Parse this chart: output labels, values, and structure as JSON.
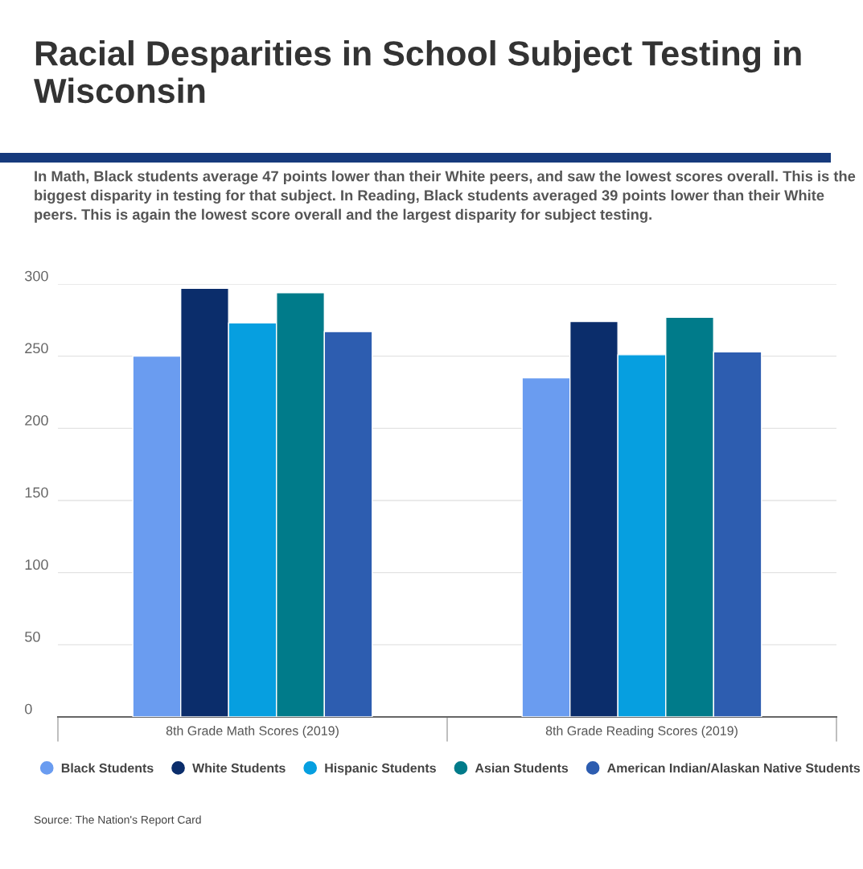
{
  "chart_data": {
    "type": "bar",
    "title": "Racial Desparities in School Subject Testing in Wisconsin",
    "subtitle": "In Math, Black students average 47 points lower than their White peers, and saw the lowest scores overall. This is the biggest disparity in testing for that subject. In Reading, Black students averaged 39 points lower than their White peers. This is again the lowest score overall and the largest disparity for subject testing.",
    "categories": [
      "8th Grade Math Scores (2019)",
      "8th Grade Reading Scores (2019)"
    ],
    "series": [
      {
        "name": "Black Students",
        "color": "#6a9cf0",
        "values": [
          250,
          235
        ]
      },
      {
        "name": "White Students",
        "color": "#0b2d6b",
        "values": [
          297,
          274
        ]
      },
      {
        "name": "Hispanic Students",
        "color": "#069fe0",
        "values": [
          273,
          251
        ]
      },
      {
        "name": "Asian Students",
        "color": "#007b8a",
        "values": [
          294,
          277
        ]
      },
      {
        "name": "American Indian/Alaskan Native Students",
        "color": "#2d5db0",
        "values": [
          267,
          253
        ]
      }
    ],
    "ylim": [
      0,
      300
    ],
    "yticks": [
      0,
      50,
      100,
      150,
      200,
      250,
      300
    ],
    "grid": "y",
    "legend": "bottom",
    "annotations": [
      "Source: The Nation's Report Card"
    ]
  }
}
